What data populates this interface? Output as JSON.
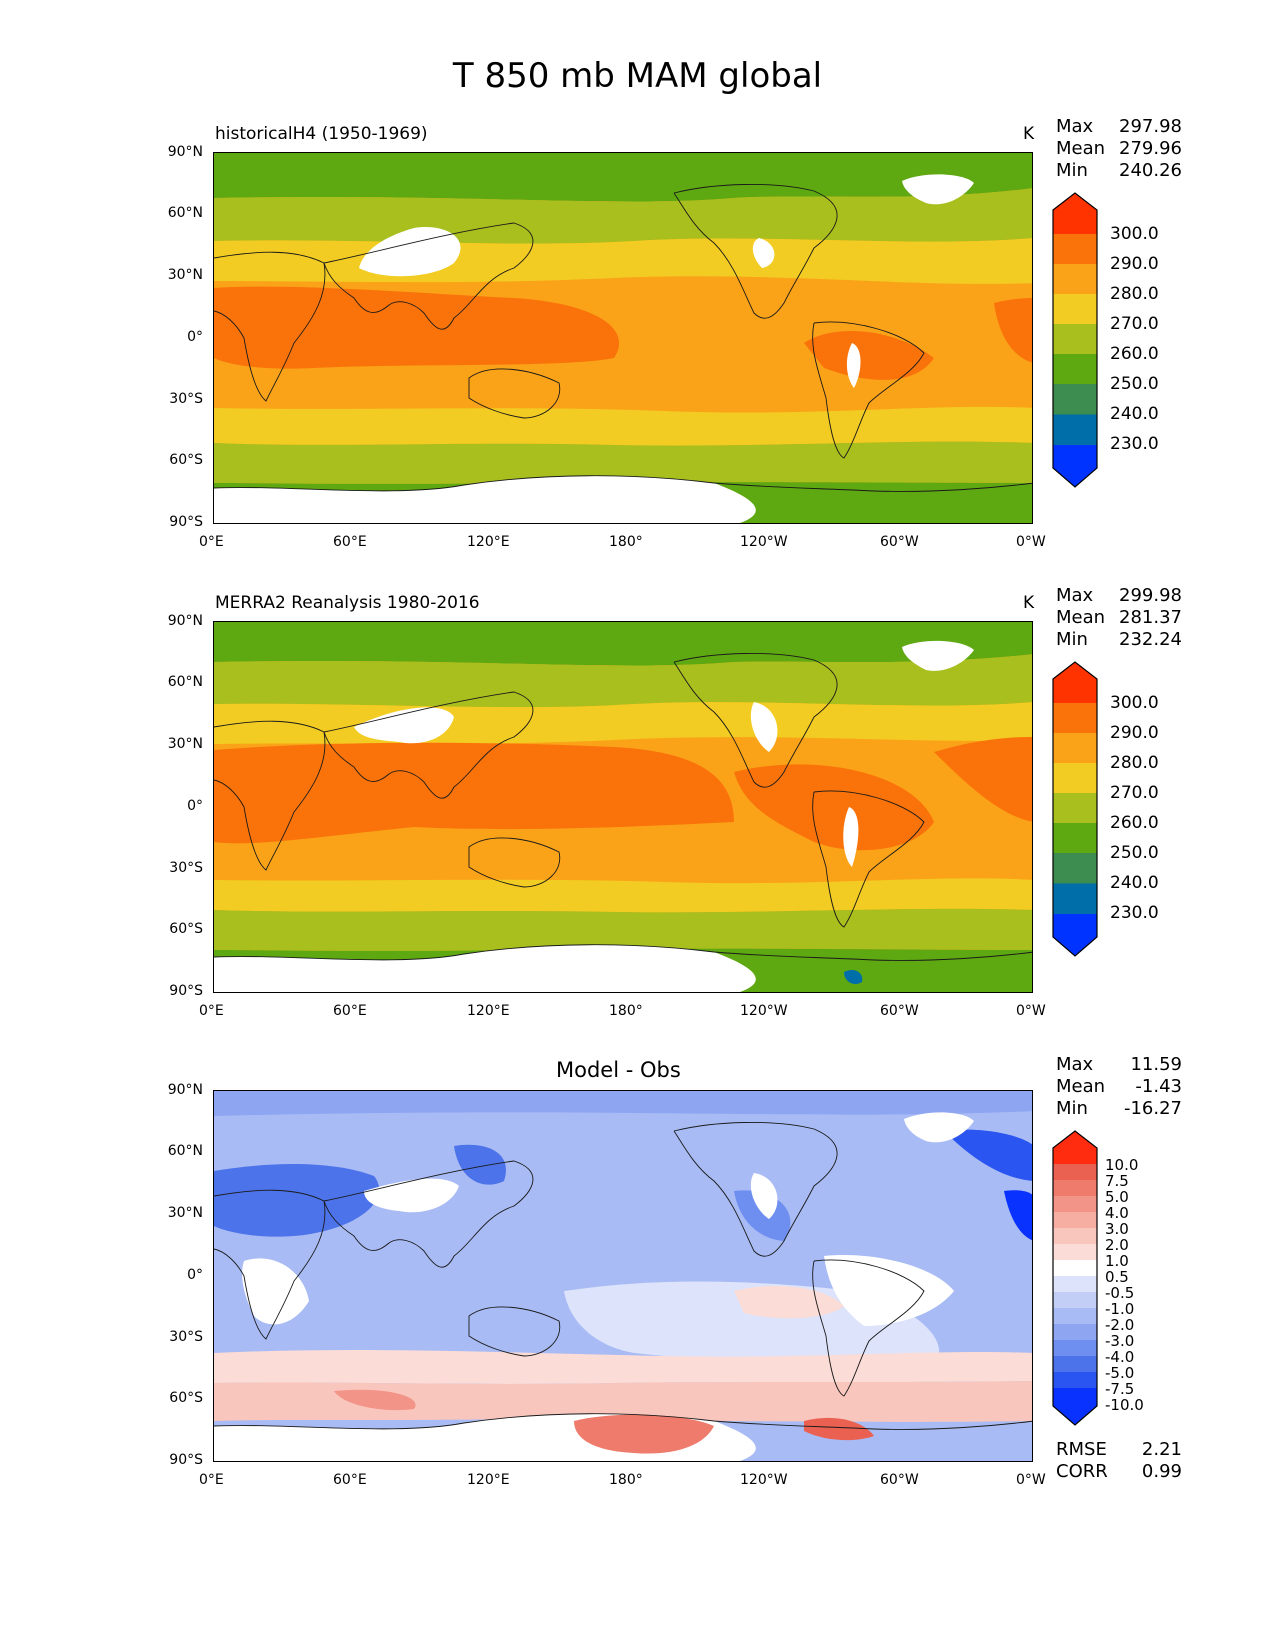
{
  "figure": {
    "title": "T 850 mb MAM global",
    "units": "K"
  },
  "axes": {
    "lat_labels": [
      "90°N",
      "60°N",
      "30°N",
      "0°",
      "30°S",
      "60°S",
      "90°S"
    ],
    "lon_labels": [
      "0°E",
      "60°E",
      "120°E",
      "180°",
      "120°W",
      "60°W",
      "0°W"
    ]
  },
  "colors": {
    "abs_levels": [
      "#0033ff",
      "#006ea8",
      "#3d8c50",
      "#5ea812",
      "#a8bf1e",
      "#f2cc22",
      "#fba318",
      "#fa730a",
      "#ff3300"
    ],
    "diff_levels": [
      "#0a32ff",
      "#2a55f0",
      "#4d73ea",
      "#6f8ff0",
      "#8ea6f2",
      "#a8bbf4",
      "#c2cef6",
      "#dce3fa",
      "#ffffff",
      "#fbdcd6",
      "#f8c6bd",
      "#f6aea3",
      "#f29487",
      "#ee7b6c",
      "#ea6152",
      "#e84838",
      "#ff2c10"
    ],
    "land_mask": "#ffffff",
    "coast": "#1a1a1a"
  },
  "panels": [
    {
      "label": "historicalH4 (1950-1969)",
      "units_label": "K",
      "stats": [
        {
          "key": "Max",
          "value": "297.98"
        },
        {
          "key": "Mean",
          "value": "279.96"
        },
        {
          "key": "Min",
          "value": "240.26"
        }
      ],
      "colorbar_labels": [
        "300.0",
        "290.0",
        "280.0",
        "270.0",
        "260.0",
        "250.0",
        "240.0",
        "230.0"
      ]
    },
    {
      "label": "MERRA2 Reanalysis 1980-2016",
      "units_label": "K",
      "stats": [
        {
          "key": "Max",
          "value": "299.98"
        },
        {
          "key": "Mean",
          "value": "281.37"
        },
        {
          "key": "Min",
          "value": "232.24"
        }
      ],
      "colorbar_labels": [
        "300.0",
        "290.0",
        "280.0",
        "270.0",
        "260.0",
        "250.0",
        "240.0",
        "230.0"
      ]
    },
    {
      "title": "Model - Obs",
      "stats": [
        {
          "key": "Max",
          "value": "11.59"
        },
        {
          "key": "Mean",
          "value": "-1.43"
        },
        {
          "key": "Min",
          "value": "-16.27"
        }
      ],
      "colorbar_labels": [
        "10.0",
        "7.5",
        "5.0",
        "4.0",
        "3.0",
        "2.0",
        "1.0",
        "0.5",
        "-0.5",
        "-1.0",
        "-2.0",
        "-3.0",
        "-4.0",
        "-5.0",
        "-7.5",
        "-10.0"
      ],
      "metrics": [
        {
          "key": "RMSE",
          "value": "2.21"
        },
        {
          "key": "CORR",
          "value": "0.99"
        }
      ]
    }
  ]
}
